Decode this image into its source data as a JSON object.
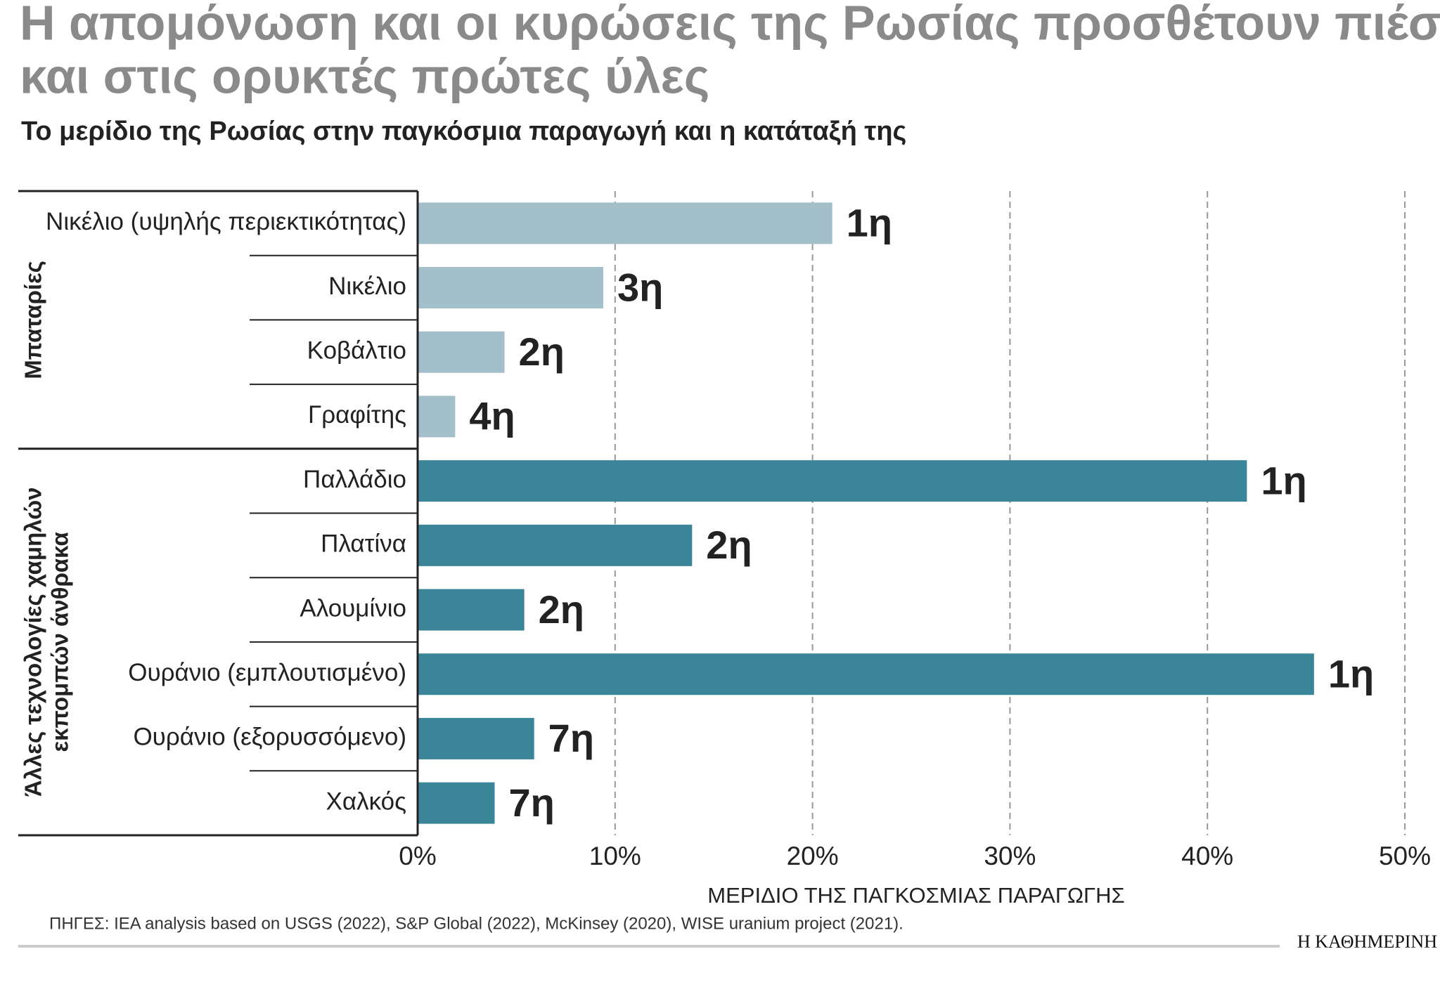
{
  "chart_data": {
    "type": "bar",
    "orientation": "horizontal",
    "title": [
      "Η απομόνωση και οι κυρώσεις της Ρωσίας προσθέτουν πιέσεις",
      "και στις ορυκτές πρώτες ύλες"
    ],
    "subtitle": "Το μερίδιο της Ρωσίας στην παγκόσμια παραγωγή και η κατάταξή της",
    "groups": [
      {
        "name": [
          "Μπαταρίες"
        ],
        "color": "#a3bfca",
        "categories": [
          "Νικέλιο (υψηλής περιεκτικότητας)",
          "Νικέλιο",
          "Κοβάλτιο",
          "Γραφίτης"
        ],
        "values": [
          21,
          9.4,
          4.4,
          1.9
        ],
        "ranks": [
          "1η",
          "3η",
          "2η",
          "4η"
        ]
      },
      {
        "name": [
          "Άλλες τεχνολογίες χαμηλών",
          "εκπομπών άνθρακα"
        ],
        "color": "#3b8598",
        "categories": [
          "Παλλάδιο",
          "Πλατίνα",
          "Αλουμίνιο",
          "Ουράνιο (εμπλουτισμένο)",
          "Ουράνιο (εξορυσσόμενο)",
          "Χαλκός"
        ],
        "values": [
          42,
          13.9,
          5.4,
          45.4,
          5.9,
          3.9
        ],
        "ranks": [
          "1η",
          "2η",
          "2η",
          "1η",
          "7η",
          "7η"
        ]
      }
    ],
    "xlim": [
      0,
      50
    ],
    "xticks": [
      {
        "value": 0,
        "label": "0%"
      },
      {
        "value": 10,
        "label": "10%"
      },
      {
        "value": 20,
        "label": "20%"
      },
      {
        "value": 30,
        "label": "30%"
      },
      {
        "value": 40,
        "label": "40%"
      },
      {
        "value": 50,
        "label": "50%"
      }
    ],
    "grid": true,
    "xlabel": "ΜΕΡΙΔΙΟ ΤΗΣ ΠΑΓΚΟΣΜΙΑΣ ΠΑΡΑΓΩΓΗΣ",
    "source": "ΠΗΓΕΣ: IEA analysis based on USGS (2022), S&P Global (2022), McKinsey (2020), WISE uranium project (2021).",
    "brand": "Η ΚΑΘΗΜΕΡΙΝΗ"
  }
}
